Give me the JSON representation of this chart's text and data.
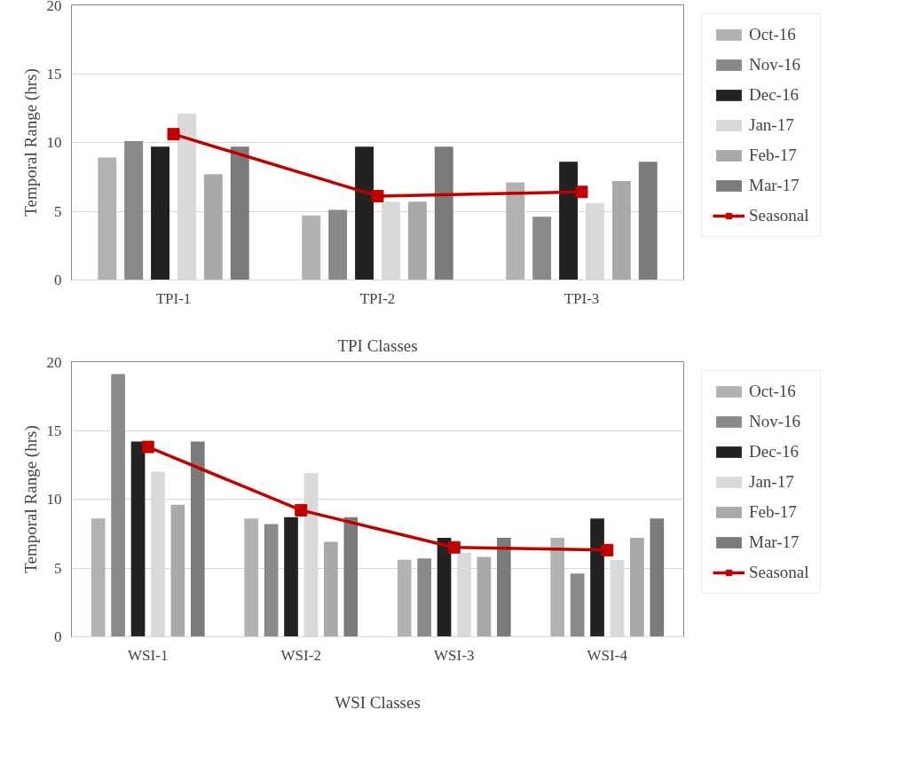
{
  "chart_data": [
    {
      "type": "bar",
      "xlabel": "TPI Classes",
      "ylabel": "Temporal Range (hrs)",
      "categories": [
        "TPI-1",
        "TPI-2",
        "TPI-3"
      ],
      "ylim": [
        0,
        20
      ],
      "yticks": [
        0,
        5,
        10,
        15,
        20
      ],
      "grid": "y",
      "legend": "right",
      "series": [
        {
          "name": "Oct-16",
          "color": "#b2b2b2",
          "values": [
            8.9,
            4.7,
            7.1
          ]
        },
        {
          "name": "Nov-16",
          "color": "#898989",
          "values": [
            10.1,
            5.1,
            4.6
          ]
        },
        {
          "name": "Dec-16",
          "color": "#222222",
          "values": [
            9.7,
            9.7,
            8.6
          ]
        },
        {
          "name": "Jan-17",
          "color": "#d9d9d9",
          "values": [
            12.1,
            5.7,
            5.6
          ]
        },
        {
          "name": "Feb-17",
          "color": "#a9a9a9",
          "values": [
            7.7,
            5.7,
            7.2
          ]
        },
        {
          "name": "Mar-17",
          "color": "#7b7b7b",
          "values": [
            9.7,
            9.7,
            8.6
          ]
        },
        {
          "name": "Seasonal",
          "type": "line",
          "marker": "square",
          "color": "#c00000",
          "values": [
            10.6,
            6.1,
            6.4
          ]
        }
      ]
    },
    {
      "type": "bar",
      "xlabel": "WSI Classes",
      "ylabel": "Temporal Range (hrs)",
      "categories": [
        "WSI-1",
        "WSI-2",
        "WSI-3",
        "WSI-4"
      ],
      "ylim": [
        0,
        20
      ],
      "yticks": [
        0,
        5,
        10,
        15,
        20
      ],
      "grid": "y",
      "legend": "right",
      "series": [
        {
          "name": "Oct-16",
          "color": "#b2b2b2",
          "values": [
            8.6,
            8.6,
            5.6,
            7.2
          ]
        },
        {
          "name": "Nov-16",
          "color": "#898989",
          "values": [
            19.1,
            8.2,
            5.7,
            4.6
          ]
        },
        {
          "name": "Dec-16",
          "color": "#222222",
          "values": [
            14.2,
            8.7,
            7.2,
            8.6
          ]
        },
        {
          "name": "Jan-17",
          "color": "#d9d9d9",
          "values": [
            12.0,
            11.9,
            6.1,
            5.6
          ]
        },
        {
          "name": "Feb-17",
          "color": "#a9a9a9",
          "values": [
            9.6,
            6.9,
            5.8,
            7.2
          ]
        },
        {
          "name": "Mar-17",
          "color": "#7b7b7b",
          "values": [
            14.2,
            8.7,
            7.2,
            8.6
          ]
        },
        {
          "name": "Seasonal",
          "type": "line",
          "marker": "square",
          "color": "#c00000",
          "values": [
            13.8,
            9.2,
            6.5,
            6.3
          ]
        }
      ]
    }
  ]
}
